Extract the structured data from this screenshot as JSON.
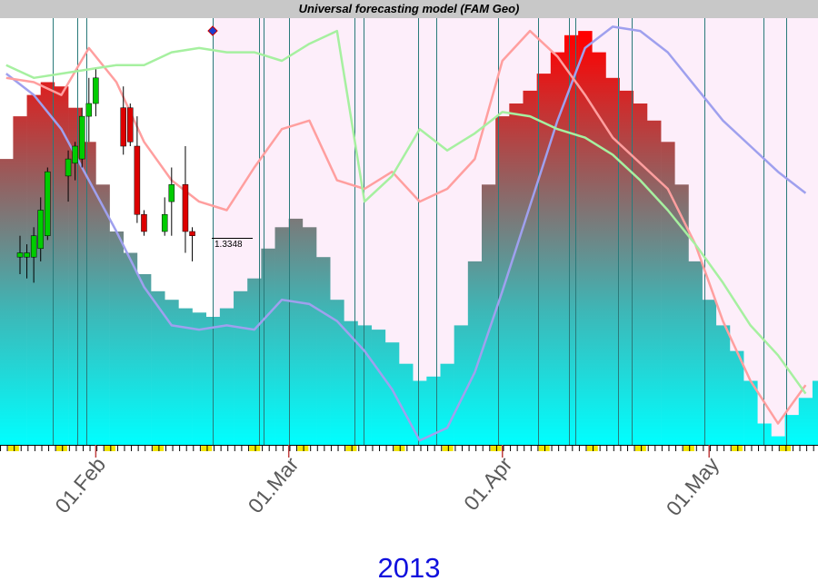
{
  "chart_data": {
    "type": "bar",
    "title": "Universal forecasting model (FAM Geo)",
    "year_label": "2013",
    "last_price_label": "1.3348",
    "xlim": [
      18.1,
      136.8
    ],
    "xticks": [
      {
        "value": 32,
        "label": "01.Feb"
      },
      {
        "value": 60,
        "label": "01.Mar"
      },
      {
        "value": 91,
        "label": "01.Apr"
      },
      {
        "value": 121,
        "label": "01.May"
      }
    ],
    "ylim": [
      0,
      100
    ],
    "forecast_start": 49,
    "background_color": "#fdeefa",
    "colors": [
      "#ff0000",
      "#9a5a5a",
      "#3fb5b5",
      "#00ffff"
    ],
    "x": [
      19,
      21,
      23,
      25,
      27,
      29,
      31,
      33,
      35,
      37,
      39,
      41,
      43,
      45,
      47,
      49,
      51,
      53,
      55,
      57,
      59,
      61,
      63,
      65,
      67,
      69,
      71,
      73,
      75,
      77,
      79,
      81,
      83,
      85,
      87,
      89,
      91,
      93,
      95,
      97,
      99,
      101,
      103,
      105,
      107,
      109,
      111,
      113,
      115,
      117,
      119,
      121,
      123,
      125,
      127,
      129,
      131,
      133,
      135,
      137
    ],
    "values": [
      67,
      77,
      82,
      85,
      84,
      79,
      71,
      61,
      50,
      45,
      40,
      36,
      34,
      32,
      31,
      30,
      32,
      36,
      39,
      46,
      51,
      53,
      51,
      44,
      34,
      29,
      28,
      27,
      24,
      19,
      15,
      16,
      19,
      28,
      43,
      61,
      77,
      80,
      83,
      87,
      92,
      96,
      97,
      92,
      86,
      83,
      80,
      76,
      71,
      61,
      43,
      34,
      28,
      22,
      15,
      5,
      2,
      7,
      11,
      15
    ],
    "line_x": [
      19,
      23,
      27,
      31,
      35,
      39,
      43,
      47,
      51,
      55,
      59,
      63,
      67,
      71,
      75,
      79,
      83,
      87,
      91,
      95,
      99,
      103,
      107,
      111,
      115,
      119,
      123,
      127,
      131,
      135
    ],
    "lines": [
      {
        "color": "#9fa0ee",
        "values": [
          87,
          82,
          74,
          62,
          50,
          37,
          28,
          27,
          28,
          27,
          34,
          33,
          29,
          22,
          13,
          1,
          4,
          17,
          36,
          56,
          76,
          93,
          98,
          97,
          92,
          84,
          76,
          70,
          64,
          59
        ]
      },
      {
        "color": "#ff9f9f",
        "values": [
          86,
          85,
          82,
          93,
          85,
          71,
          62,
          57,
          55,
          65,
          74,
          76,
          62,
          60,
          64,
          57,
          60,
          67,
          90,
          97,
          91,
          82,
          72,
          66,
          60,
          47,
          29,
          15,
          5,
          14
        ]
      },
      {
        "color": "#a6f0a0",
        "values": [
          89,
          86,
          87,
          88,
          89,
          89,
          92,
          93,
          92,
          92,
          90,
          94,
          97,
          57,
          63,
          74,
          69,
          73,
          78,
          77,
          74,
          72,
          68,
          62,
          55,
          47,
          38,
          28,
          21,
          12
        ]
      }
    ],
    "candles": {
      "x": [
        21,
        22,
        23,
        24,
        25,
        28,
        29,
        30,
        31,
        32,
        36,
        37,
        38,
        39,
        42,
        43,
        45,
        46
      ],
      "open": [
        44,
        44,
        44,
        46,
        49,
        63,
        66,
        67,
        77,
        80,
        79,
        79,
        70,
        54,
        50,
        57,
        61,
        50
      ],
      "close": [
        45,
        45,
        49,
        55,
        64,
        67,
        70,
        77,
        80,
        86,
        70,
        71,
        54,
        50,
        54,
        61,
        50,
        49
      ],
      "high": [
        49,
        47,
        51,
        58,
        65,
        69,
        71,
        79,
        86,
        88,
        84,
        80,
        77,
        55,
        58,
        65,
        70,
        51
      ],
      "low": [
        40,
        39,
        38,
        43,
        48,
        57,
        62,
        65,
        71,
        77,
        68,
        70,
        52,
        49,
        49,
        49,
        45,
        43
      ],
      "up_color": "#00cc00",
      "down_color": "#dd0000"
    },
    "event_line_color": "#2a7a7a",
    "event_days": [
      25.8,
      29.3,
      30.6,
      49,
      55.7,
      56.4,
      60.1,
      69.6,
      70.9,
      78.8,
      81.4,
      90.4,
      96.2,
      100.6,
      101.6,
      107.8,
      109.8,
      120.3,
      128.9,
      132.2
    ]
  }
}
